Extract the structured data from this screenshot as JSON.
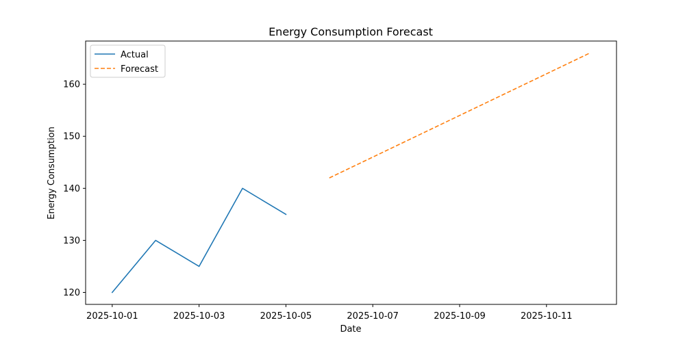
{
  "chart_data": {
    "type": "line",
    "title": "Energy Consumption Forecast",
    "xlabel": "Date",
    "ylabel": "Energy Consumption",
    "x_ticks": [
      "2025-10-01",
      "2025-10-03",
      "2025-10-05",
      "2025-10-07",
      "2025-10-09",
      "2025-10-11"
    ],
    "y_ticks": [
      120,
      130,
      140,
      150,
      160
    ],
    "xlim": [
      "2025-09-30T09:18",
      "2025-10-12T14:42"
    ],
    "ylim": [
      117.7,
      168.3
    ],
    "grid": false,
    "legend": "top-left",
    "series": [
      {
        "name": "Actual",
        "style": "solid",
        "color": "#1f77b4",
        "x": [
          "2025-10-01",
          "2025-10-02",
          "2025-10-03",
          "2025-10-04",
          "2025-10-05"
        ],
        "y": [
          120,
          130,
          125,
          140,
          135
        ]
      },
      {
        "name": "Forecast",
        "style": "dashed",
        "color": "#ff7f0e",
        "x": [
          "2025-10-06",
          "2025-10-07",
          "2025-10-08",
          "2025-10-09",
          "2025-10-10",
          "2025-10-11",
          "2025-10-12"
        ],
        "y": [
          142,
          146,
          150,
          154,
          158,
          162,
          166
        ]
      }
    ]
  }
}
